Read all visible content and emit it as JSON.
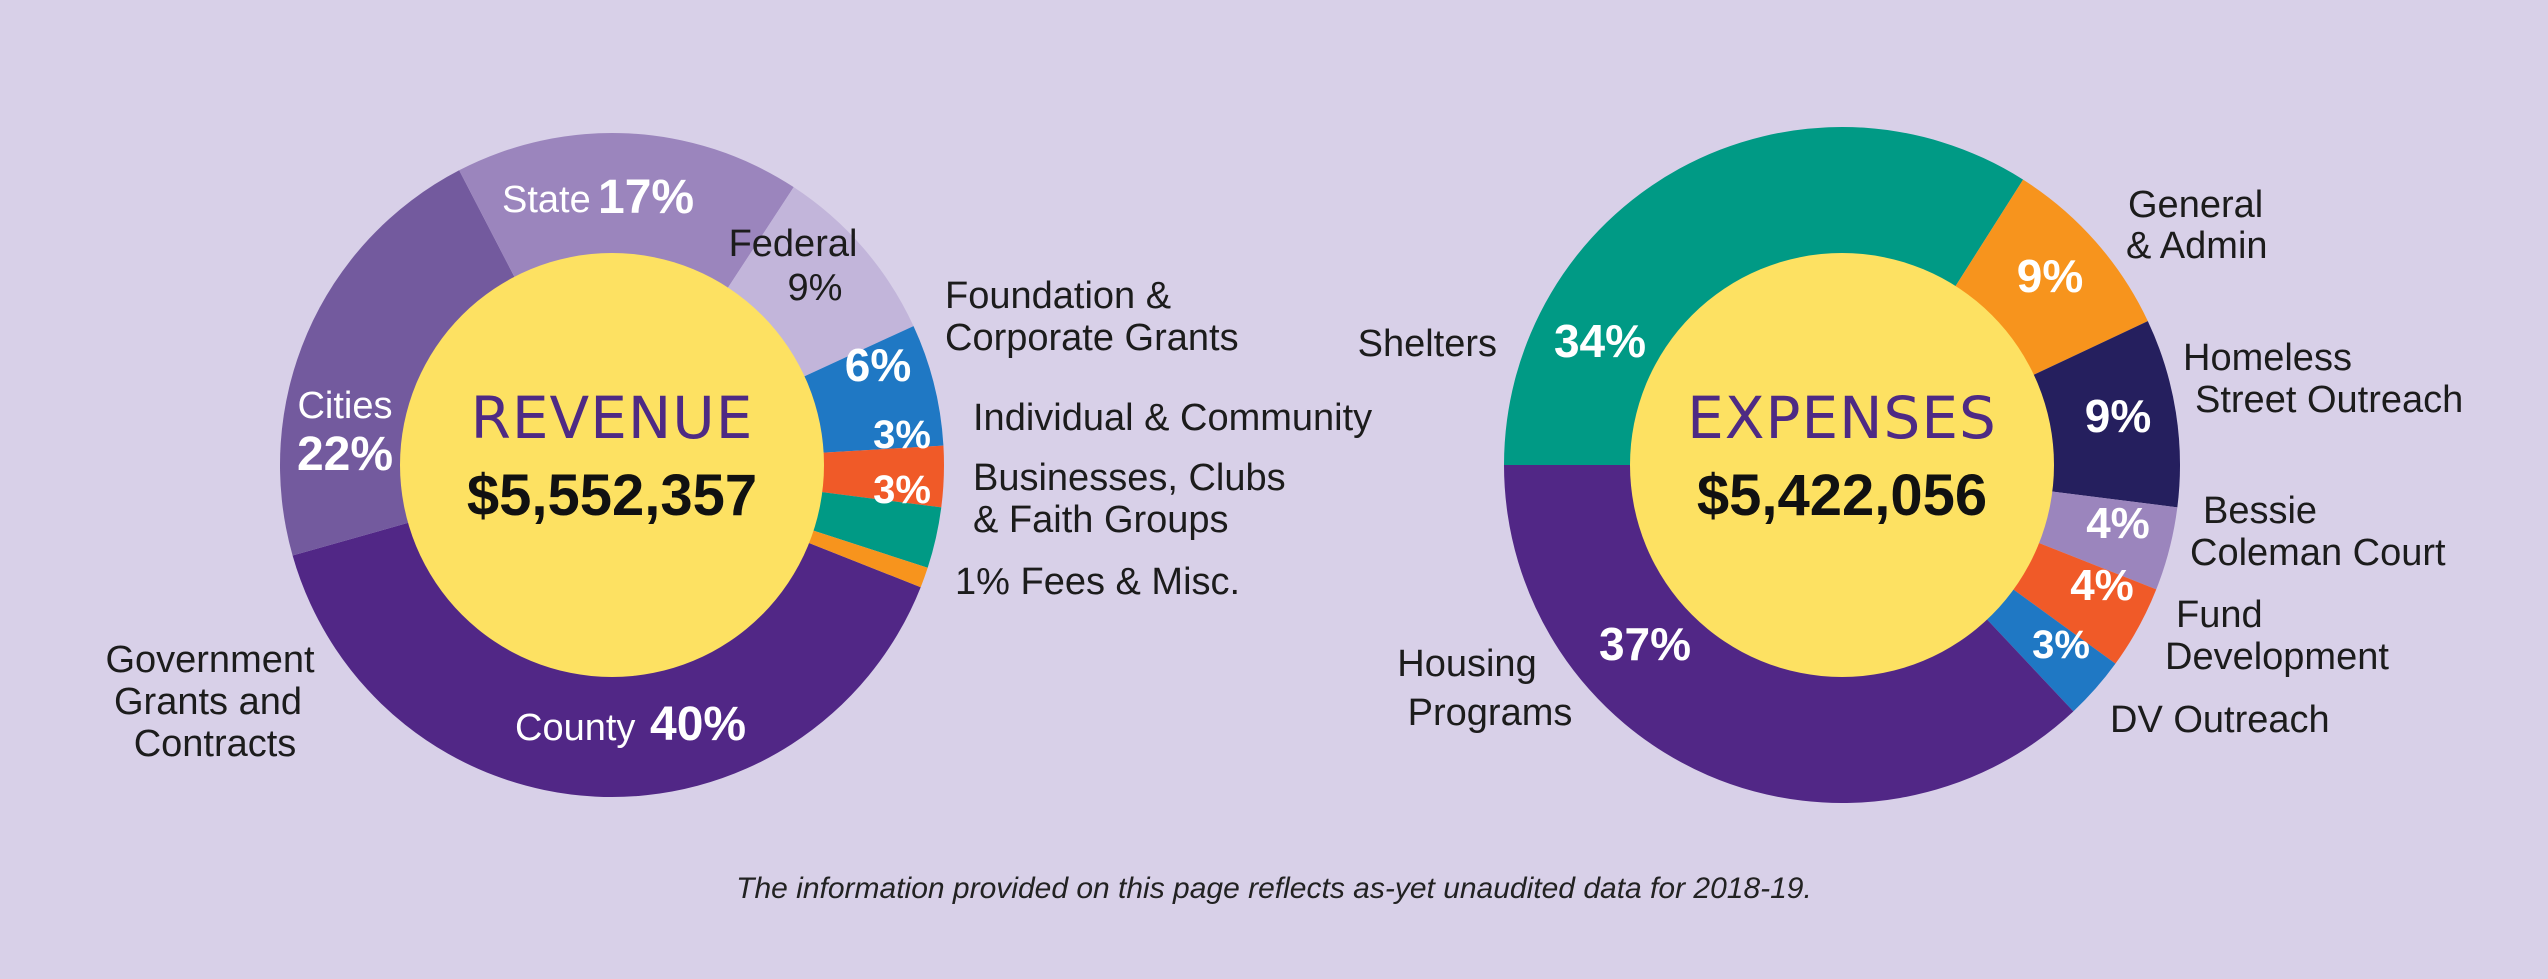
{
  "colors": {
    "background": "#d8d0e8",
    "center": "#fde162",
    "county": "#512786",
    "cities": "#735a9e",
    "state": "#9b85bd",
    "federal": "#c2b5da",
    "foundation": "#1f78c4",
    "individual": "#f05a28",
    "businesses": "#009a85",
    "fees": "#f7941d",
    "shelters": "#009a85",
    "general": "#f7941d",
    "homeless": "#251f5e",
    "bessie": "#9b85bd",
    "fund": "#f05a28",
    "dv": "#1f78c4",
    "housing": "#512786"
  },
  "chart_data": [
    {
      "type": "pie",
      "title": "REVENUE",
      "total": "$5,552,357",
      "slices": [
        {
          "id": "county",
          "label": "County",
          "pct_label": "40%",
          "value": 40
        },
        {
          "id": "cities",
          "label": "Cities",
          "pct_label": "22%",
          "value": 22
        },
        {
          "id": "state",
          "label": "State",
          "pct_label": "17%",
          "value": 17
        },
        {
          "id": "federal",
          "label": "Federal",
          "pct_label": "9%",
          "value": 9
        },
        {
          "id": "foundation",
          "label_lines": [
            "Foundation &",
            "Corporate Grants"
          ],
          "pct_label": "6%",
          "value": 6
        },
        {
          "id": "individual",
          "label_lines": [
            "Individual & Community"
          ],
          "pct_label": "3%",
          "value": 3
        },
        {
          "id": "businesses",
          "label_lines": [
            "Businesses, Clubs",
            "& Faith Groups"
          ],
          "pct_label": "3%",
          "value": 3
        },
        {
          "id": "fees",
          "label_lines": [
            "1% Fees & Misc."
          ],
          "pct_label": "",
          "value": 1
        }
      ],
      "group_label_lines": [
        "Government",
        "Grants and",
        "Contracts"
      ]
    },
    {
      "type": "pie",
      "title": "EXPENSES",
      "total": "$5,422,056",
      "slices": [
        {
          "id": "shelters",
          "label_lines": [
            "Shelters"
          ],
          "pct_label": "34%",
          "value": 34
        },
        {
          "id": "general",
          "label_lines": [
            "General",
            "& Admin"
          ],
          "pct_label": "9%",
          "value": 9
        },
        {
          "id": "homeless",
          "label_lines": [
            "Homeless",
            "Street Outreach"
          ],
          "pct_label": "9%",
          "value": 9
        },
        {
          "id": "bessie",
          "label_lines": [
            "Bessie",
            "Coleman Court"
          ],
          "pct_label": "4%",
          "value": 4
        },
        {
          "id": "fund",
          "label_lines": [
            "Fund",
            "Development"
          ],
          "pct_label": "4%",
          "value": 4
        },
        {
          "id": "dv",
          "label_lines": [
            "DV Outreach"
          ],
          "pct_label": "3%",
          "value": 3
        },
        {
          "id": "housing",
          "label_lines": [
            "Housing",
            "Programs"
          ],
          "pct_label": "37%",
          "value": 37
        }
      ]
    }
  ],
  "footnote": "The information provided on this page reflects as-yet unaudited data for 2018-19."
}
